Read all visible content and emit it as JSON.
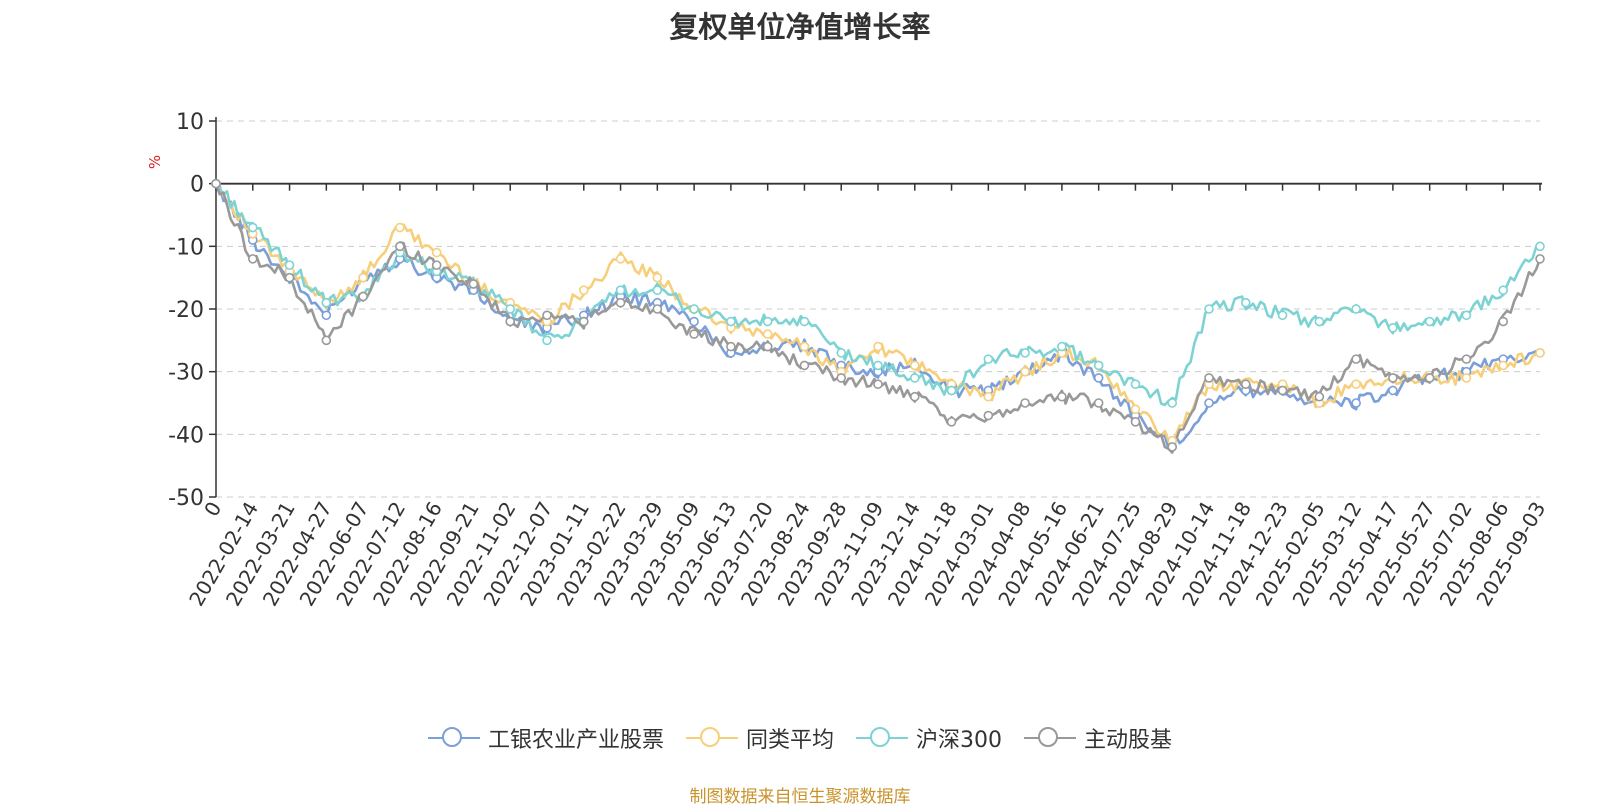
{
  "chart_data": {
    "type": "line",
    "title": "复权单位净值增长率",
    "ylabel": "%",
    "ylim": [
      -50,
      10
    ],
    "yticks": [
      10,
      0,
      -10,
      -20,
      -30,
      -40,
      -50
    ],
    "grid": true,
    "legend_position": "bottom",
    "x_start_label": "0",
    "xtick_labels": [
      "2022-02-14",
      "2022-03-21",
      "2022-04-27",
      "2022-06-07",
      "2022-07-12",
      "2022-08-16",
      "2022-09-21",
      "2022-11-02",
      "2022-12-07",
      "2023-01-11",
      "2023-02-22",
      "2023-03-29",
      "2023-05-09",
      "2023-06-13",
      "2023-07-20",
      "2023-08-24",
      "2023-09-28",
      "2023-11-09",
      "2023-12-14",
      "2024-01-18",
      "2024-03-01",
      "2024-04-08",
      "2024-05-16",
      "2024-06-21",
      "2024-07-25",
      "2024-08-29",
      "2024-10-14",
      "2024-11-18",
      "2024-12-23",
      "2025-02-05",
      "2025-03-12",
      "2025-04-17",
      "2025-05-27",
      "2025-07-02",
      "2025-08-06",
      "2025-09-03"
    ],
    "x": [
      "0",
      "2022-02-14",
      "2022-03-21",
      "2022-04-27",
      "2022-06-07",
      "2022-07-12",
      "2022-08-16",
      "2022-09-21",
      "2022-11-02",
      "2022-12-07",
      "2023-01-11",
      "2023-02-22",
      "2023-03-29",
      "2023-05-09",
      "2023-06-13",
      "2023-07-20",
      "2023-08-24",
      "2023-09-28",
      "2023-11-09",
      "2023-12-14",
      "2024-01-18",
      "2024-03-01",
      "2024-04-08",
      "2024-05-16",
      "2024-06-21",
      "2024-07-25",
      "2024-08-29",
      "2024-10-14",
      "2024-11-18",
      "2024-12-23",
      "2025-02-05",
      "2025-03-12",
      "2025-04-17",
      "2025-05-27",
      "2025-07-02",
      "2025-08-06",
      "2025-09-03"
    ],
    "series": [
      {
        "name": "工银农业产业股票",
        "color": "#7b9fd8",
        "values": [
          0,
          -9,
          -15,
          -21,
          -15,
          -12,
          -15,
          -17,
          -22,
          -23,
          -21,
          -18,
          -19,
          -22,
          -27,
          -26,
          -26,
          -29,
          -30,
          -29,
          -33,
          -33,
          -30,
          -27,
          -31,
          -37,
          -42,
          -35,
          -33,
          -33,
          -35,
          -35,
          -33,
          -31,
          -30,
          -28,
          -27
        ]
      },
      {
        "name": "同类平均",
        "color": "#f7cf7b",
        "values": [
          0,
          -8,
          -14,
          -19,
          -15,
          -7,
          -11,
          -16,
          -19,
          -22,
          -17,
          -12,
          -15,
          -20,
          -23,
          -24,
          -26,
          -30,
          -26,
          -29,
          -32,
          -34,
          -30,
          -27,
          -29,
          -36,
          -41,
          -32,
          -32,
          -32,
          -35,
          -32,
          -31,
          -31,
          -31,
          -29,
          -27
        ]
      },
      {
        "name": "沪深300",
        "color": "#7dd3d3",
        "values": [
          0,
          -7,
          -13,
          -19,
          -18,
          -11,
          -14,
          -16,
          -20,
          -25,
          -22,
          -17,
          -17,
          -20,
          -22,
          -22,
          -22,
          -27,
          -29,
          -31,
          -33,
          -28,
          -27,
          -26,
          -29,
          -32,
          -35,
          -20,
          -19,
          -21,
          -22,
          -20,
          -23,
          -22,
          -21,
          -17,
          -10
        ]
      },
      {
        "name": "主动股基",
        "color": "#999999",
        "values": [
          0,
          -12,
          -15,
          -25,
          -18,
          -10,
          -13,
          -16,
          -22,
          -21,
          -22,
          -19,
          -20,
          -24,
          -26,
          -26,
          -29,
          -31,
          -32,
          -34,
          -38,
          -37,
          -35,
          -34,
          -35,
          -38,
          -42,
          -31,
          -32,
          -33,
          -34,
          -28,
          -31,
          -31,
          -28,
          -22,
          -12
        ]
      }
    ]
  },
  "source": "制图数据来自恒生聚源数据库"
}
